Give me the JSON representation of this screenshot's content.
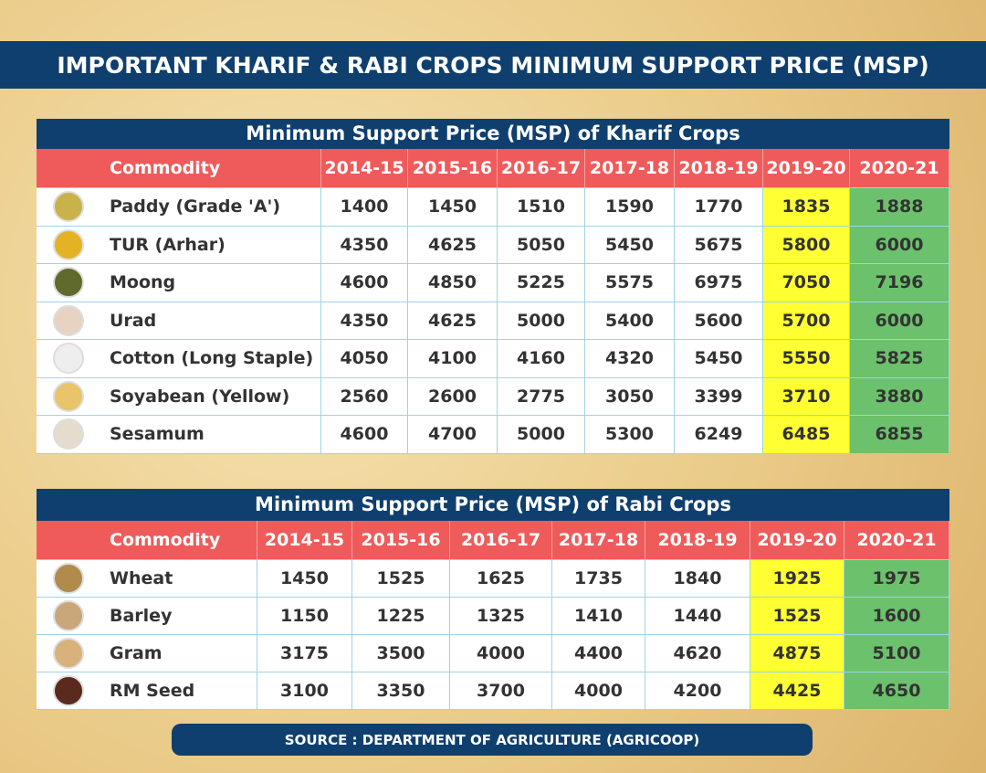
{
  "header": {
    "title": "IMPORTANT KHARIF & RABI CROPS MINIMUM SUPPORT PRICE (MSP)"
  },
  "tables": [
    {
      "title": "Minimum Support Price (MSP) of Kharif Crops",
      "columns": [
        "Commodity",
        "2014-15",
        "2015-16",
        "2016-17",
        "2017-18",
        "2018-19",
        "2019-20",
        "2020-21"
      ],
      "rows": [
        [
          "Paddy (Grade 'A')",
          1400,
          1450,
          1510,
          1590,
          1770,
          1835,
          1888
        ],
        [
          "TUR (Arhar)",
          4350,
          4625,
          5050,
          5450,
          5675,
          5800,
          6000
        ],
        [
          "Moong",
          4600,
          4850,
          5225,
          5575,
          6975,
          7050,
          7196
        ],
        [
          "Urad",
          4350,
          4625,
          5000,
          5400,
          5600,
          5700,
          6000
        ],
        [
          "Cotton (Long Staple)",
          4050,
          4100,
          4160,
          4320,
          5450,
          5550,
          5825
        ],
        [
          "Soyabean (Yellow)",
          2560,
          2600,
          2775,
          3050,
          3399,
          3710,
          3880
        ],
        [
          "Sesamum",
          4600,
          4700,
          5000,
          5300,
          6249,
          6485,
          6855
        ]
      ]
    },
    {
      "title": "Minimum Support Price (MSP) of Rabi Crops",
      "columns": [
        "Commodity",
        "2014-15",
        "2015-16",
        "2016-17",
        "2017-18",
        "2018-19",
        "2019-20",
        "2020-21"
      ],
      "rows": [
        [
          "Wheat",
          1450,
          1525,
          1625,
          1735,
          1840,
          1925,
          1975
        ],
        [
          "Barley",
          1150,
          1225,
          1325,
          1410,
          1440,
          1525,
          1600
        ],
        [
          "Gram",
          3175,
          3500,
          4000,
          4400,
          4620,
          4875,
          5100
        ],
        [
          "RM Seed",
          3100,
          3350,
          3700,
          4000,
          4200,
          4425,
          4650
        ]
      ]
    }
  ],
  "footer": {
    "source": "SOURCE : DEPARTMENT OF AGRICULTURE (AGRICOOP)"
  }
}
